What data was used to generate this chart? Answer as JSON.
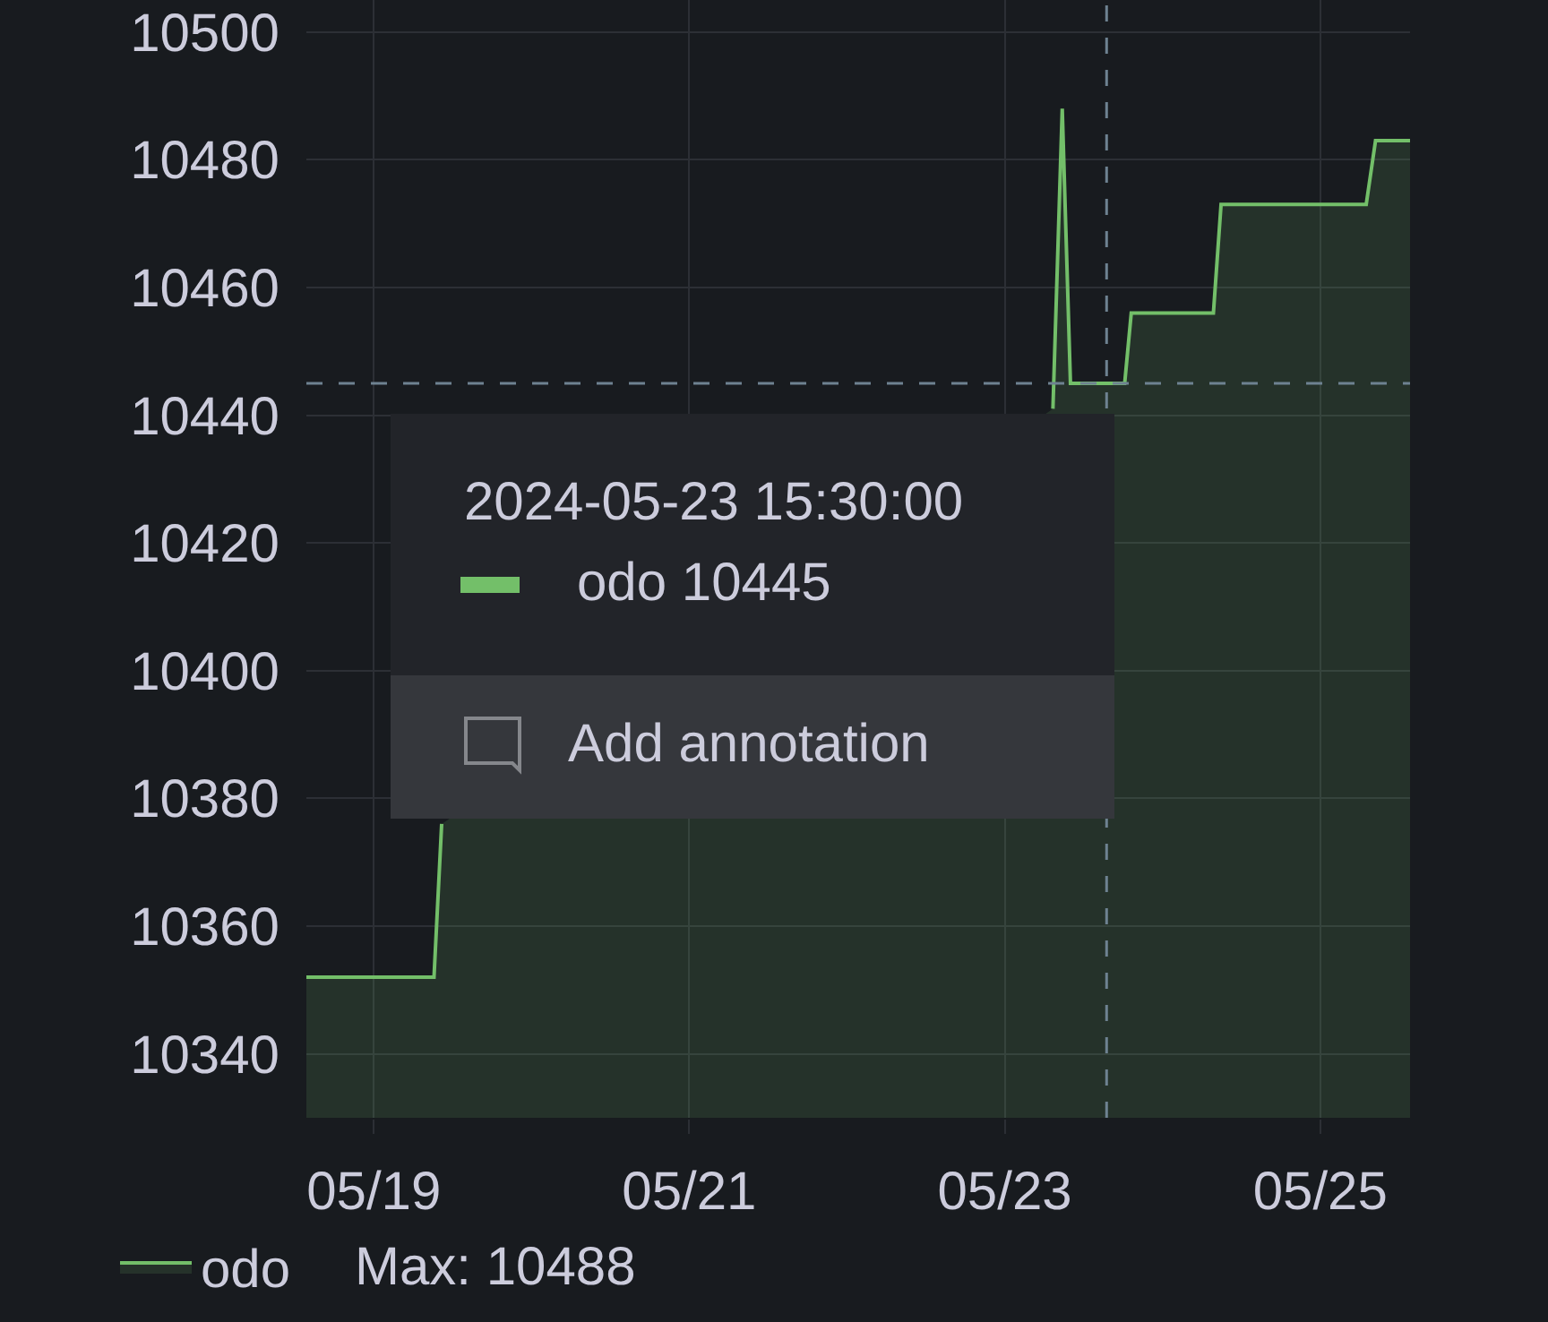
{
  "chart_data": {
    "type": "area",
    "x": [
      "2024-05-18T13:45",
      "2024-05-19T09:10",
      "2024-05-19T10:20",
      "2024-05-21T12:00",
      "2024-05-23T07:20",
      "2024-05-23T08:45",
      "2024-05-23T10:00",
      "2024-05-23T18:15",
      "2024-05-23T19:15",
      "2024-05-24T07:45",
      "2024-05-24T08:55",
      "2024-05-25T07:00",
      "2024-05-25T08:25",
      "2024-05-25T13:40"
    ],
    "series": [
      {
        "name": "odo",
        "color": "#73bf69",
        "values": [
          10352,
          10352,
          10376,
          null,
          10441,
          10488,
          10445,
          10445,
          10456,
          10456,
          10473,
          10473,
          10483,
          10483
        ]
      }
    ],
    "xlim": [
      "2024-05-18T13:45",
      "2024-05-25T13:40"
    ],
    "ylim": [
      10330,
      10505
    ],
    "xticks": [
      {
        "value": "2024-05-19",
        "label": "05/19"
      },
      {
        "value": "2024-05-21",
        "label": "05/21"
      },
      {
        "value": "2024-05-23",
        "label": "05/23"
      },
      {
        "value": "2024-05-25",
        "label": "05/25"
      }
    ],
    "yticks": [
      10340,
      10360,
      10380,
      10400,
      10420,
      10440,
      10460,
      10480,
      10500
    ],
    "grid": true,
    "legend": "bottom left",
    "ref_lines": [
      {
        "axis": "x",
        "value": "2024-05-23T15:30",
        "color": "#6e8291",
        "line_style": "dashed"
      },
      {
        "axis": "y",
        "value": 10445,
        "color": "#6e8291",
        "line_style": "dashed"
      }
    ],
    "annotations": [
      "2024-05-23 15:30:00",
      "odo 10445",
      "Add annotation",
      "Max: 10488"
    ]
  }
}
